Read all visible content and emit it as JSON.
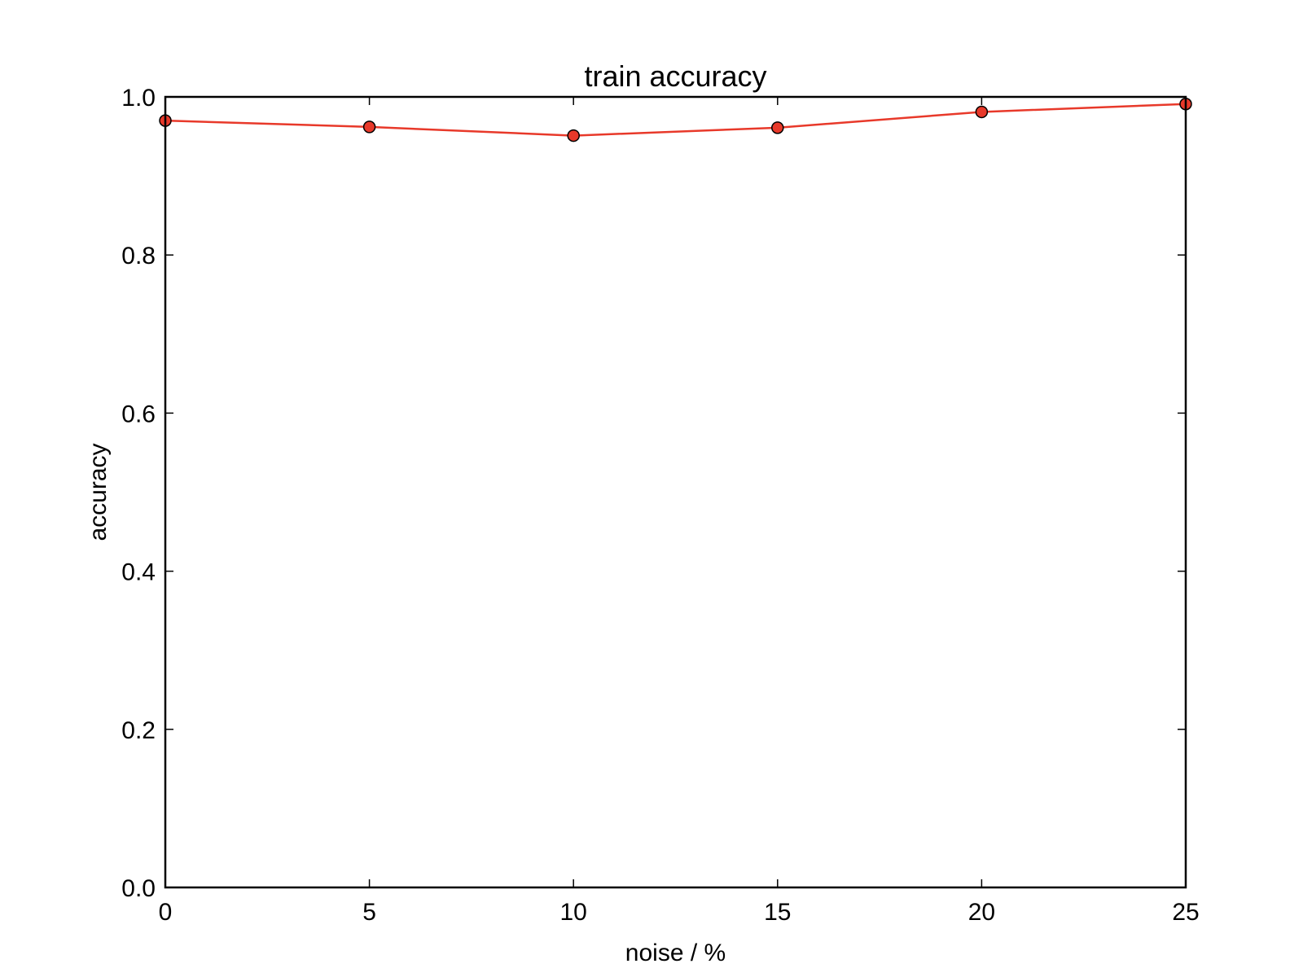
{
  "chart_data": {
    "type": "line",
    "title": "train accuracy",
    "xlabel": "noise / %",
    "ylabel": "accuracy",
    "xlim": [
      0,
      25
    ],
    "ylim": [
      0.0,
      1.0
    ],
    "xticks": [
      0,
      5,
      10,
      15,
      20,
      25
    ],
    "xtick_labels": [
      "0",
      "5",
      "10",
      "15",
      "20",
      "25"
    ],
    "yticks": [
      0.0,
      0.2,
      0.4,
      0.6,
      0.8,
      1.0
    ],
    "ytick_labels": [
      "0.0",
      "0.2",
      "0.4",
      "0.6",
      "0.8",
      "1.0"
    ],
    "grid": false,
    "series": [
      {
        "x": [
          0,
          5,
          10,
          15,
          20,
          25
        ],
        "y": [
          0.97,
          0.962,
          0.951,
          0.961,
          0.981,
          0.991
        ],
        "color": "#e8392a",
        "marker": "circle"
      }
    ]
  }
}
